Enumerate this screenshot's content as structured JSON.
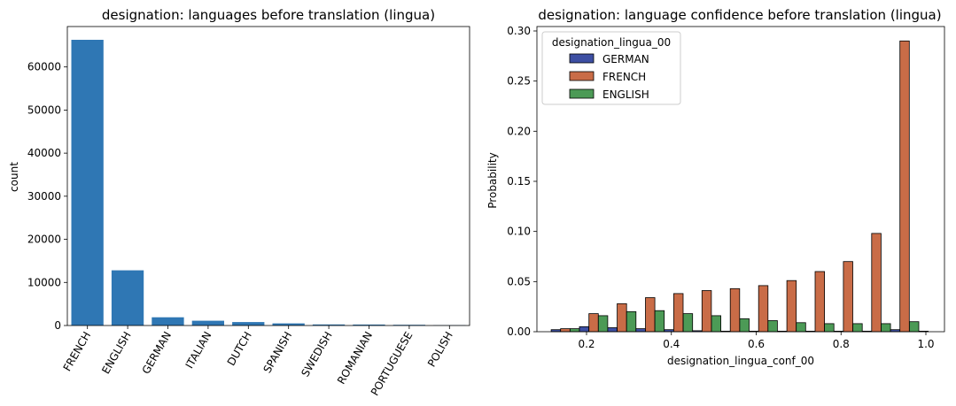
{
  "chart_data": [
    {
      "type": "bar",
      "title": "designation: languages before translation (lingua)",
      "xlabel": "",
      "ylabel": "count",
      "ylim": [
        0,
        70000
      ],
      "yticks": [
        0,
        10000,
        20000,
        30000,
        40000,
        50000,
        60000
      ],
      "categories": [
        "FRENCH",
        "ENGLISH",
        "GERMAN",
        "ITALIAN",
        "DUTCH",
        "SPANISH",
        "SWEDISH",
        "ROMANIAN",
        "PORTUGUESE",
        "POLISH"
      ],
      "values": [
        66300,
        12800,
        1900,
        1100,
        800,
        500,
        250,
        220,
        170,
        80
      ],
      "color": "#2f77b4",
      "grid": false
    },
    {
      "type": "bar",
      "title": "designation: language confidence before translation (lingua)",
      "xlabel": "designation_lingua_conf_00",
      "ylabel": "Probability",
      "xlim": [
        0.09,
        1.03
      ],
      "ylim": [
        0,
        0.305
      ],
      "xticks": [
        0.2,
        0.4,
        0.6,
        0.8,
        1.0
      ],
      "yticks": [
        0.0,
        0.05,
        0.1,
        0.15,
        0.2,
        0.25,
        0.3
      ],
      "bin_centers": [
        0.15,
        0.2167,
        0.2833,
        0.35,
        0.4167,
        0.4833,
        0.55,
        0.6167,
        0.6833,
        0.75,
        0.8167,
        0.8833,
        0.95,
        1.0167
      ],
      "legend": {
        "title": "designation_lingua_00",
        "position": "top-left"
      },
      "series": [
        {
          "name": "GERMAN",
          "color": "#3d4fa3",
          "values": [
            0.002,
            0.005,
            0.004,
            0.003,
            0.002,
            0.001,
            0.0005,
            0.0005,
            0.0005,
            0.0005,
            0.0005,
            0.0005,
            0.002,
            0.0005
          ]
        },
        {
          "name": "FRENCH",
          "color": "#c96c47",
          "values": [
            0.003,
            0.018,
            0.028,
            0.034,
            0.038,
            0.041,
            0.043,
            0.046,
            0.051,
            0.06,
            0.07,
            0.098,
            0.29,
            0.0
          ]
        },
        {
          "name": "ENGLISH",
          "color": "#4c9a56",
          "values": [
            0.003,
            0.016,
            0.02,
            0.021,
            0.018,
            0.016,
            0.013,
            0.011,
            0.009,
            0.008,
            0.008,
            0.008,
            0.01,
            0.0
          ]
        }
      ]
    }
  ]
}
